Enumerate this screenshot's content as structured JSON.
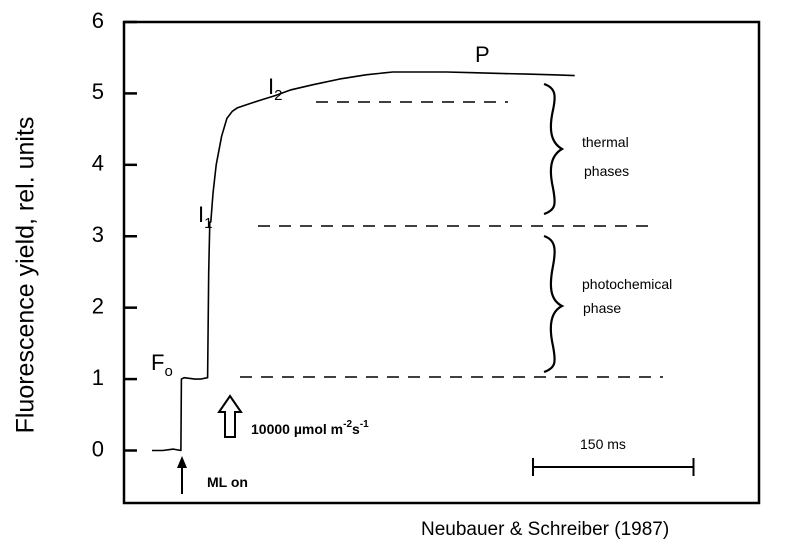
{
  "chart_data": {
    "type": "line",
    "ylabel": "Fluorescence yield, rel. units",
    "ylim": [
      0,
      6
    ],
    "yticks": [
      "0",
      "1",
      "2",
      "3",
      "4",
      "5",
      "6"
    ],
    "grid": false,
    "series": [
      {
        "x": [
          0,
          10,
          20,
          27,
          27.5,
          30,
          40,
          45,
          52,
          53,
          54,
          55,
          57,
          60,
          65,
          70,
          75,
          80,
          90,
          100,
          115,
          130,
          150,
          175,
          200,
          225,
          250,
          275,
          300,
          325,
          350,
          375,
          395
        ],
        "values": [
          0,
          0,
          0.02,
          0,
          1.0,
          1.02,
          1.0,
          1.0,
          1.02,
          2.5,
          3.2,
          3.2,
          3.6,
          4.0,
          4.4,
          4.65,
          4.75,
          4.8,
          4.85,
          4.9,
          4.97,
          5.05,
          5.12,
          5.2,
          5.26,
          5.3,
          5.3,
          5.3,
          5.29,
          5.28,
          5.27,
          5.26,
          5.25
        ]
      }
    ],
    "point_labels": {
      "fo": {
        "main": "F",
        "sub": "o"
      },
      "i1": {
        "main": "I",
        "sub": "1"
      },
      "i2": {
        "main": "I",
        "sub": "2"
      },
      "p": {
        "main": "P"
      }
    },
    "annotations": {
      "ml_on": "ML on",
      "actinic_prefix": "10000 µmol m",
      "actinic_exp1": "-2",
      "actinic_mid": "s",
      "actinic_exp2": "-1",
      "thermal_line1": "thermal",
      "thermal_line2": "phases",
      "photo_line1": "photochemical",
      "photo_line2": "phase",
      "scale_bar_label": "150 ms",
      "scale_bar_ms": 150
    }
  },
  "source": "Neubauer & Schreiber (1987)"
}
